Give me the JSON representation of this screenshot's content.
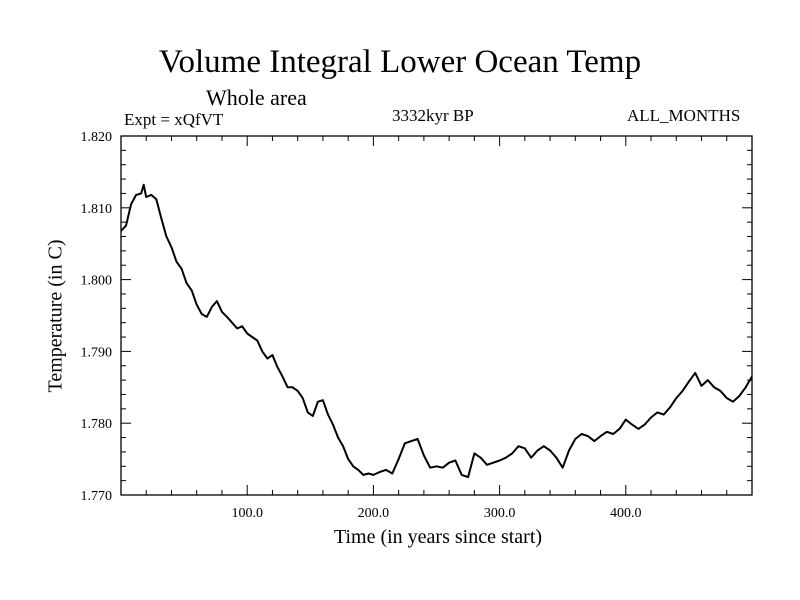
{
  "chart_data": {
    "type": "line",
    "title": "Volume Integral Lower Ocean Temp",
    "subtitle": "Whole area",
    "expt": "Expt = xQfVT",
    "period": "3332kyr BP",
    "months": "ALL_MONTHS",
    "xlabel": "Time (in years since start)",
    "ylabel": "Temperature (in C)",
    "xlim": [
      0,
      500
    ],
    "ylim": [
      1.77,
      1.82
    ],
    "x_ticks": [
      100,
      200,
      300,
      400
    ],
    "x_tick_labels": [
      "100.0",
      "200.0",
      "300.0",
      "400.0"
    ],
    "y_ticks": [
      1.77,
      1.78,
      1.79,
      1.8,
      1.81,
      1.82
    ],
    "y_tick_labels": [
      "1.770",
      "1.780",
      "1.790",
      "1.800",
      "1.810",
      "1.820"
    ],
    "line_color": "#000000",
    "series": [
      {
        "name": "Temperature",
        "x": [
          0,
          4,
          8,
          12,
          16,
          18,
          20,
          24,
          28,
          32,
          36,
          40,
          44,
          48,
          52,
          56,
          60,
          64,
          68,
          72,
          76,
          80,
          84,
          88,
          92,
          96,
          100,
          104,
          108,
          112,
          116,
          120,
          124,
          128,
          132,
          136,
          140,
          144,
          148,
          152,
          156,
          160,
          164,
          168,
          172,
          176,
          180,
          184,
          188,
          192,
          196,
          200,
          205,
          210,
          215,
          220,
          225,
          230,
          235,
          240,
          245,
          250,
          255,
          260,
          265,
          270,
          275,
          280,
          285,
          290,
          295,
          300,
          305,
          310,
          315,
          320,
          325,
          330,
          335,
          340,
          345,
          350,
          355,
          360,
          365,
          370,
          375,
          380,
          385,
          390,
          395,
          400,
          405,
          410,
          415,
          420,
          425,
          430,
          435,
          440,
          445,
          450,
          455,
          460,
          465,
          470,
          475,
          480,
          485,
          490,
          495,
          500
        ],
        "values": [
          1.8068,
          1.8075,
          1.8105,
          1.8118,
          1.812,
          1.8132,
          1.8115,
          1.8118,
          1.8112,
          1.8085,
          1.806,
          1.8045,
          1.8025,
          1.8015,
          1.7995,
          1.7985,
          1.7965,
          1.7952,
          1.7948,
          1.7962,
          1.797,
          1.7955,
          1.7948,
          1.794,
          1.7932,
          1.7935,
          1.7925,
          1.792,
          1.7915,
          1.79,
          1.789,
          1.7895,
          1.7878,
          1.7865,
          1.785,
          1.785,
          1.7845,
          1.7835,
          1.7815,
          1.781,
          1.783,
          1.7832,
          1.7812,
          1.7798,
          1.778,
          1.7768,
          1.775,
          1.774,
          1.7735,
          1.7728,
          1.773,
          1.7728,
          1.7732,
          1.7735,
          1.773,
          1.775,
          1.7772,
          1.7775,
          1.7778,
          1.7755,
          1.7738,
          1.774,
          1.7738,
          1.7745,
          1.7748,
          1.7728,
          1.7725,
          1.7758,
          1.7752,
          1.7742,
          1.7745,
          1.7748,
          1.7752,
          1.7758,
          1.7768,
          1.7765,
          1.7752,
          1.7762,
          1.7768,
          1.7762,
          1.7752,
          1.7738,
          1.7762,
          1.7778,
          1.7785,
          1.7782,
          1.7775,
          1.7782,
          1.7788,
          1.7785,
          1.7792,
          1.7805,
          1.7798,
          1.7792,
          1.7798,
          1.7808,
          1.7815,
          1.7812,
          1.7822,
          1.7835,
          1.7845,
          1.7858,
          1.787,
          1.7852,
          1.786,
          1.785,
          1.7845,
          1.7835,
          1.783,
          1.7838,
          1.785,
          1.7865
        ]
      }
    ]
  }
}
